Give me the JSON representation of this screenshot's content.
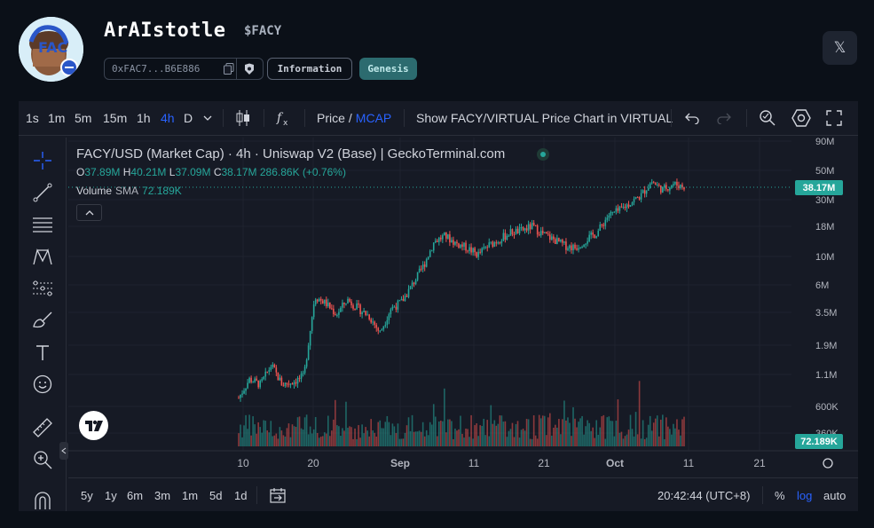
{
  "header": {
    "token_name": "ArAIstotle",
    "ticker": "$FACY",
    "address": "0xFAC7...B6E886",
    "badges": [
      "Information",
      "Genesis"
    ],
    "social_icon": "x-icon"
  },
  "toolbar": {
    "timeframes": [
      "1s",
      "1m",
      "5m",
      "15m",
      "1h",
      "4h",
      "D"
    ],
    "active_timeframe": "4h",
    "price_label": "Price",
    "divider": "/",
    "mcap_label": "MCAP",
    "show_chart_label": "Show FACY/VIRTUAL Price Chart in VIRTUAL"
  },
  "legend": {
    "title": "FACY/USD (Market Cap) · 4h · Uniswap V2 (Base) | GeckoTerminal.com",
    "o_label": "O",
    "o_value": "37.89M",
    "h_label": "H",
    "h_value": "40.21M",
    "l_label": "L",
    "l_value": "37.09M",
    "c_label": "C",
    "c_value": "38.17M",
    "change": "286.86K (+0.76%)",
    "volume_label": "Volume",
    "sma_label": "SMA",
    "volume_value": "72.189K"
  },
  "price_axis": {
    "ticks": [
      "90M",
      "50M",
      "30M",
      "18M",
      "10M",
      "6M",
      "3.5M",
      "1.9M",
      "1.1M",
      "600K",
      "360K"
    ],
    "last_price_tag": "38.17M",
    "volume_tag": "72.189K"
  },
  "time_axis": {
    "ticks": [
      "10",
      "20",
      "Sep",
      "11",
      "21",
      "Oct",
      "11",
      "21"
    ]
  },
  "bottombar": {
    "ranges": [
      "5y",
      "1y",
      "6m",
      "3m",
      "1m",
      "5d",
      "1d"
    ],
    "clock": "20:42:44 (UTC+8)",
    "percent": "%",
    "log": "log",
    "auto": "auto"
  },
  "chart_data": {
    "type": "candlestick",
    "title": "FACY/USD (Market Cap) · 4h · Uniswap V2 (Base) | GeckoTerminal.com",
    "scale": "log",
    "x_ticks": [
      "10",
      "20",
      "Sep",
      "11",
      "21",
      "Oct",
      "11",
      "21"
    ],
    "y_ticks": [
      "90M",
      "50M",
      "30M",
      "18M",
      "10M",
      "6M",
      "3.5M",
      "1.9M",
      "1.1M",
      "600K",
      "360K"
    ],
    "close_path_millions": [
      0.7,
      1.0,
      0.9,
      1.3,
      0.9,
      0.95,
      1.05,
      4.8,
      4.2,
      3.4,
      4.5,
      3.8,
      3.3,
      2.4,
      3.8,
      4.3,
      6.0,
      8.5,
      13.5,
      15.0,
      13.0,
      12.0,
      10.5,
      12.5,
      14.0,
      16.0,
      16.5,
      18.0,
      15.5,
      14.0,
      12.5,
      12.0,
      14.0,
      16.0,
      22.0,
      24.0,
      28.0,
      32.0,
      42.0,
      36.0,
      40.0,
      38.17
    ],
    "last": {
      "open": "37.89M",
      "high": "40.21M",
      "low": "37.09M",
      "close": "38.17M"
    },
    "volume_sma": "72.189K",
    "grid": true
  }
}
